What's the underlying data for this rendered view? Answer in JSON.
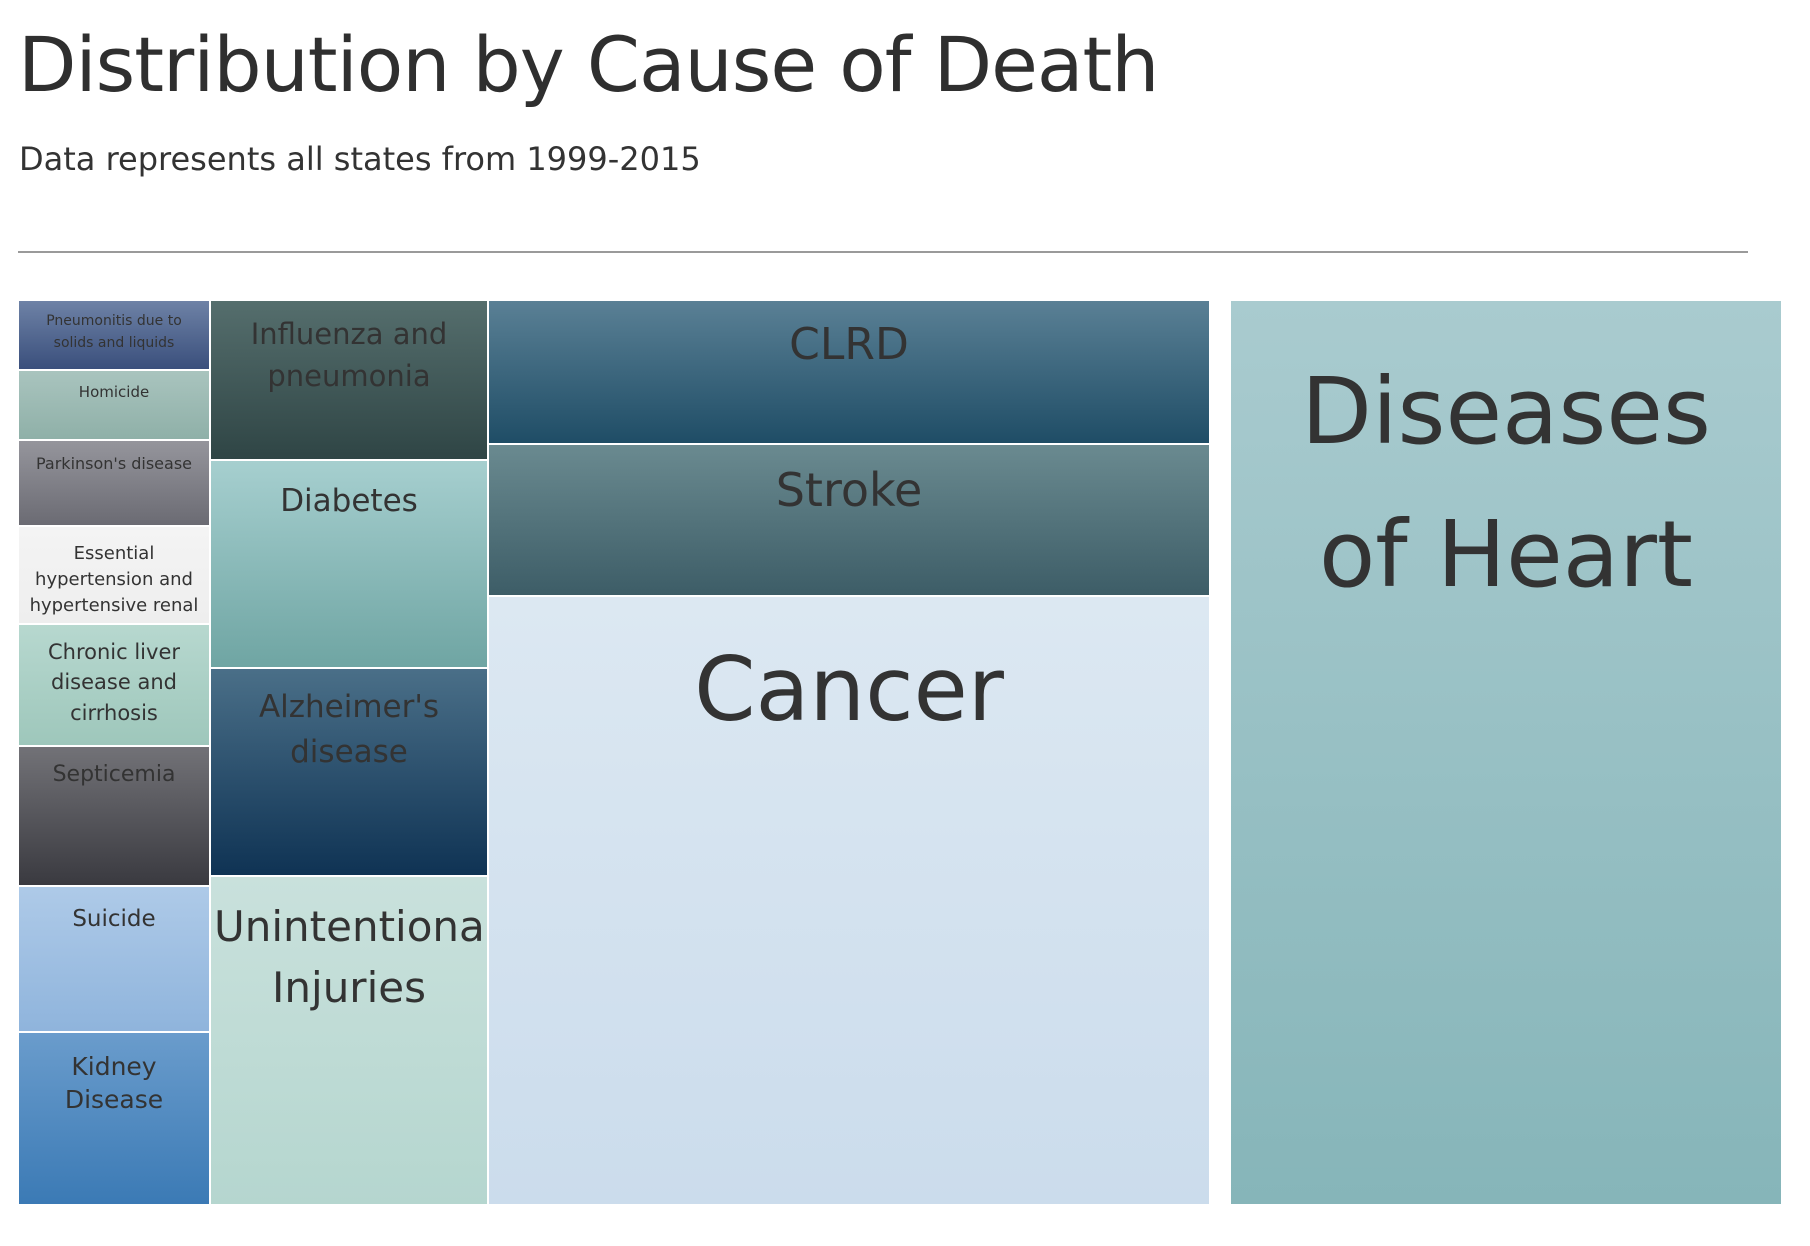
{
  "title": "Distribution by Cause of Death",
  "subtitle": "Data represents all states from 1999-2015",
  "chart_data": {
    "type": "treemap",
    "title": "Distribution by Cause of Death",
    "subtitle": "Data represents all states from 1999-2015",
    "tiles": [
      {
        "label": "Diseases of Heart",
        "color": "#86b5b9",
        "color_top": "#a9cbcf",
        "size_rank": 1
      },
      {
        "label": "Cancer",
        "color": "#cbdcec",
        "color_top": "#dce8f2",
        "size_rank": 2
      },
      {
        "label": "Stroke",
        "color": "#3d5d67",
        "color_top": "#6a8a90",
        "size_rank": 3
      },
      {
        "label": "CLRD",
        "color": "#1f4d66",
        "color_top": "#5a8095",
        "size_rank": 4
      },
      {
        "label": "Unintentional Injuries",
        "color": "#b5d6cf",
        "color_top": "#c9e1dc",
        "size_rank": 5
      },
      {
        "label": "Alzheimer's disease",
        "color": "#0f3354",
        "color_top": "#4a6f88",
        "size_rank": 6
      },
      {
        "label": "Diabetes",
        "color": "#6fa5a3",
        "color_top": "#a6cfcf",
        "size_rank": 7
      },
      {
        "label": "Influenza and pneumonia",
        "color": "#2f4545",
        "color_top": "#556e6d",
        "size_rank": 8
      },
      {
        "label": "Kidney Disease",
        "color": "#3b7ab5",
        "color_top": "#6a9ccc",
        "size_rank": 9
      },
      {
        "label": "Suicide",
        "color": "#8fb4dc",
        "color_top": "#aecae8",
        "size_rank": 10
      },
      {
        "label": "Septicemia",
        "color": "#3a3a40",
        "color_top": "#727277",
        "size_rank": 11
      },
      {
        "label": "Chronic liver disease and cirrhosis",
        "color": "#9ec7bb",
        "color_top": "#b7d8cf",
        "size_rank": 12
      },
      {
        "label": "Essential hypertension and hypertensive renal",
        "color": "#eeeeee",
        "color_top": "#f4f4f4",
        "size_rank": 13
      },
      {
        "label": "Parkinson's disease",
        "color": "#6b6b73",
        "color_top": "#95959c",
        "size_rank": 14
      },
      {
        "label": "Homicide",
        "color": "#8fb0a8",
        "color_top": "#a9c4be",
        "size_rank": 15
      },
      {
        "label": "Pneumonitis due to solids and liquids",
        "color": "#3a4f7c",
        "color_top": "#6e82a6",
        "size_rank": 16
      }
    ]
  }
}
